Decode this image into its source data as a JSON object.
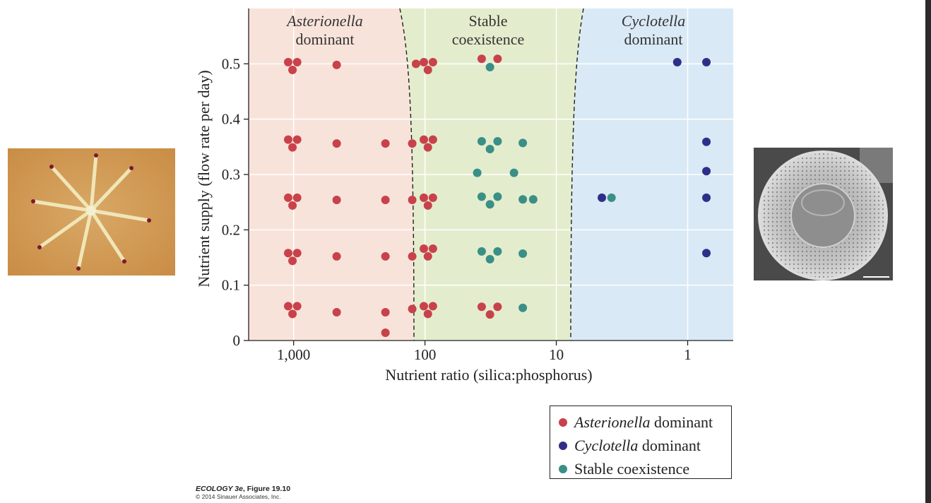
{
  "chart_data": {
    "type": "scatter",
    "xlabel": "Nutrient ratio (silica:phosphorus)",
    "ylabel": "Nutrient supply (flow rate per day)",
    "x_scale": "log-reversed",
    "xlim": [
      2200,
      0.45
    ],
    "ylim": [
      0,
      0.6
    ],
    "x_ticks": [
      {
        "value": 1000,
        "label": "1,000"
      },
      {
        "value": 100,
        "label": "100"
      },
      {
        "value": 10,
        "label": "10"
      },
      {
        "value": 1,
        "label": "1"
      }
    ],
    "y_ticks": [
      {
        "value": 0,
        "label": "0"
      },
      {
        "value": 0.1,
        "label": "0.1"
      },
      {
        "value": 0.2,
        "label": "0.2"
      },
      {
        "value": 0.3,
        "label": "0.3"
      },
      {
        "value": 0.4,
        "label": "0.4"
      },
      {
        "value": 0.5,
        "label": "0.5"
      }
    ],
    "regions": [
      {
        "name": "asterionella",
        "italic": "Asterionella",
        "line2": "dominant",
        "color": "#f8e3da"
      },
      {
        "name": "coexistence",
        "line1": "Stable",
        "line2": "coexistence",
        "color": "#e3edcd"
      },
      {
        "name": "cyclotella",
        "italic": "Cyclotella",
        "line2": "dominant",
        "color": "#d9e9f6"
      }
    ],
    "series": [
      {
        "name": "Asterionella dominant",
        "color": "#c8424b",
        "points": [
          [
            1100,
            0.503
          ],
          [
            940,
            0.503
          ],
          [
            1020,
            0.489
          ],
          [
            1100,
            0.363
          ],
          [
            940,
            0.363
          ],
          [
            1020,
            0.349
          ],
          [
            1100,
            0.258
          ],
          [
            940,
            0.258
          ],
          [
            1020,
            0.244
          ],
          [
            1100,
            0.158
          ],
          [
            940,
            0.158
          ],
          [
            1020,
            0.144
          ],
          [
            1100,
            0.062
          ],
          [
            940,
            0.062
          ],
          [
            1020,
            0.048
          ],
          [
            470,
            0.498
          ],
          [
            470,
            0.356
          ],
          [
            470,
            0.254
          ],
          [
            470,
            0.152
          ],
          [
            470,
            0.051
          ],
          [
            200,
            0.356
          ],
          [
            200,
            0.254
          ],
          [
            200,
            0.152
          ],
          [
            200,
            0.051
          ],
          [
            200,
            0.014
          ],
          [
            125,
            0.356
          ],
          [
            125,
            0.254
          ],
          [
            125,
            0.152
          ],
          [
            125,
            0.057
          ],
          [
            117,
            0.5
          ],
          [
            102,
            0.503
          ],
          [
            87,
            0.503
          ],
          [
            95,
            0.489
          ],
          [
            102,
            0.363
          ],
          [
            87,
            0.363
          ],
          [
            95,
            0.349
          ],
          [
            102,
            0.258
          ],
          [
            87,
            0.258
          ],
          [
            95,
            0.244
          ],
          [
            102,
            0.166
          ],
          [
            87,
            0.166
          ],
          [
            95,
            0.152
          ],
          [
            102,
            0.062
          ],
          [
            87,
            0.062
          ],
          [
            95,
            0.048
          ],
          [
            37,
            0.509
          ],
          [
            28,
            0.509
          ],
          [
            37,
            0.061
          ],
          [
            28,
            0.061
          ],
          [
            32,
            0.047
          ]
        ]
      },
      {
        "name": "Cyclotella dominant",
        "color": "#2f2f8a",
        "points": [
          [
            1.2,
            0.503
          ],
          [
            0.72,
            0.503
          ],
          [
            0.72,
            0.359
          ],
          [
            0.72,
            0.306
          ],
          [
            4.5,
            0.258
          ],
          [
            0.72,
            0.258
          ],
          [
            0.72,
            0.158
          ]
        ]
      },
      {
        "name": "Stable coexistence",
        "color": "#3a8f86",
        "points": [
          [
            32,
            0.494
          ],
          [
            37,
            0.36
          ],
          [
            28,
            0.36
          ],
          [
            32,
            0.346
          ],
          [
            18,
            0.357
          ],
          [
            40,
            0.303
          ],
          [
            21,
            0.303
          ],
          [
            37,
            0.26
          ],
          [
            28,
            0.26
          ],
          [
            32,
            0.246
          ],
          [
            18,
            0.255
          ],
          [
            15,
            0.255
          ],
          [
            37,
            0.161
          ],
          [
            28,
            0.161
          ],
          [
            32,
            0.147
          ],
          [
            18,
            0.157
          ],
          [
            18,
            0.059
          ],
          [
            3.8,
            0.258
          ]
        ]
      }
    ]
  },
  "legend": {
    "items": [
      {
        "italic": "Asterionella",
        "text": "dominant",
        "color": "#c8424b"
      },
      {
        "italic": "Cyclotella",
        "text": "dominant",
        "color": "#2f2f8a"
      },
      {
        "italic": "",
        "text": "Stable coexistence",
        "color": "#3a8f86"
      }
    ]
  },
  "credit": {
    "title": "ECOLOGY 3e",
    "figure": ", Figure 19.10",
    "copyright": "© 2014 Sinauer Associates, Inc."
  }
}
